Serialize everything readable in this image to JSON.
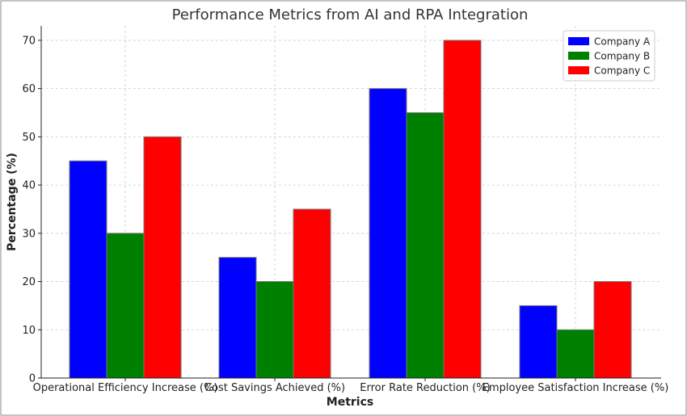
{
  "chart_data": {
    "type": "bar",
    "title": "Performance Metrics from AI and RPA Integration",
    "xlabel": "Metrics",
    "ylabel": "Percentage (%)",
    "categories": [
      "Operational Efficiency Increase (%)",
      "Cost Savings Achieved (%)",
      "Error Rate Reduction (%)",
      "Employee Satisfaction Increase (%)"
    ],
    "series": [
      {
        "name": "Company A",
        "color": "#0000ff",
        "values": [
          45,
          25,
          60,
          15
        ]
      },
      {
        "name": "Company B",
        "color": "#008000",
        "values": [
          30,
          20,
          55,
          10
        ]
      },
      {
        "name": "Company C",
        "color": "#ff0000",
        "values": [
          50,
          35,
          70,
          20
        ]
      }
    ],
    "ylim": [
      0,
      73
    ],
    "yticks": [
      0,
      10,
      20,
      30,
      40,
      50,
      60,
      70
    ],
    "grid": true,
    "legend_position": "top-right"
  }
}
